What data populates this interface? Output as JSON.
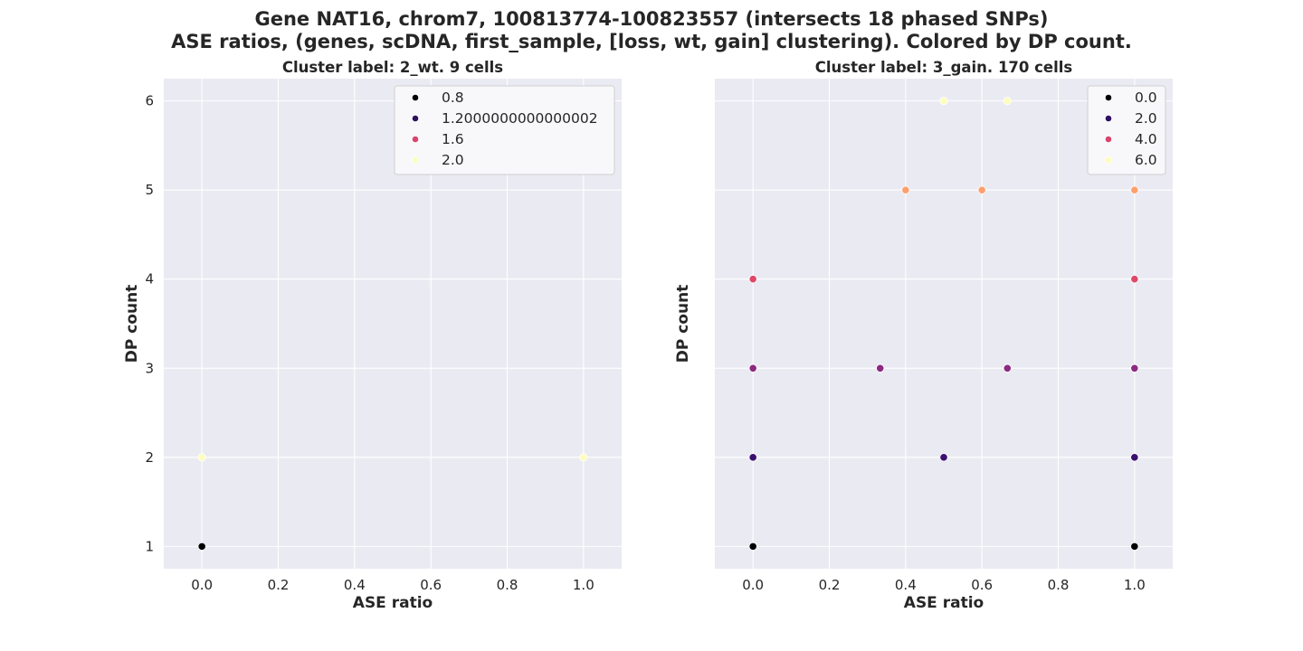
{
  "suptitle_line1": "Gene NAT16, chrom7, 100813774-100823557 (intersects 18 phased SNPs)",
  "suptitle_line2": "ASE ratios, (genes, scDNA, first_sample, [loss, wt, gain] clustering). Colored by DP count.",
  "colors": {
    "panel_bg": "#eaeaf2",
    "grid": "#ffffff",
    "legend_bg": "#f8f8fb",
    "legend_border": "#d0d0d0"
  },
  "chart_data": [
    {
      "type": "scatter",
      "title": "Cluster label: 2_wt. 9 cells",
      "xlabel": "ASE ratio",
      "ylabel": "DP count",
      "xlim": [
        -0.1,
        1.1
      ],
      "ylim": [
        0.75,
        6.25
      ],
      "xticks": [
        "0.0",
        "0.2",
        "0.4",
        "0.6",
        "0.8",
        "1.0"
      ],
      "yticks": [
        "1",
        "2",
        "3",
        "4",
        "5",
        "6"
      ],
      "show_yticklabels": true,
      "grid": true,
      "legend_position": "top-right",
      "legend": [
        {
          "label": "0.8",
          "color": "#000004"
        },
        {
          "label": "1.2000000000000002",
          "color": "#2e1060"
        },
        {
          "label": "1.6",
          "color": "#d8456c"
        },
        {
          "label": "2.0",
          "color": "#fcfdbf"
        }
      ],
      "points": [
        {
          "x": 0.0,
          "y": 1,
          "color": "#000004"
        },
        {
          "x": 0.0,
          "y": 2,
          "color": "#fcfdbf"
        },
        {
          "x": 1.0,
          "y": 2,
          "color": "#fcfdbf"
        }
      ]
    },
    {
      "type": "scatter",
      "title": "Cluster label: 3_gain. 170 cells",
      "xlabel": "ASE ratio",
      "ylabel": "DP count",
      "xlim": [
        -0.1,
        1.1
      ],
      "ylim": [
        0.75,
        6.25
      ],
      "xticks": [
        "0.0",
        "0.2",
        "0.4",
        "0.6",
        "0.8",
        "1.0"
      ],
      "yticks": [
        "1",
        "2",
        "3",
        "4",
        "5",
        "6"
      ],
      "show_yticklabels": false,
      "grid": true,
      "legend_position": "top-right",
      "legend": [
        {
          "label": "0.0",
          "color": "#000004"
        },
        {
          "label": "2.0",
          "color": "#2e1060"
        },
        {
          "label": "4.0",
          "color": "#d8456c"
        },
        {
          "label": "6.0",
          "color": "#fcfdbf"
        }
      ],
      "points": [
        {
          "x": 0.0,
          "y": 1,
          "color": "#000004"
        },
        {
          "x": 1.0,
          "y": 1,
          "color": "#000004"
        },
        {
          "x": 0.0,
          "y": 2,
          "color": "#3b0f70"
        },
        {
          "x": 0.5,
          "y": 2,
          "color": "#3b0f70"
        },
        {
          "x": 1.0,
          "y": 2,
          "color": "#3b0f70"
        },
        {
          "x": 0.0,
          "y": 3,
          "color": "#8c2981"
        },
        {
          "x": 0.3333,
          "y": 3,
          "color": "#8c2981"
        },
        {
          "x": 0.6667,
          "y": 3,
          "color": "#8c2981"
        },
        {
          "x": 1.0,
          "y": 3,
          "color": "#8c2981"
        },
        {
          "x": 0.0,
          "y": 4,
          "color": "#de4968"
        },
        {
          "x": 1.0,
          "y": 4,
          "color": "#de4968"
        },
        {
          "x": 0.4,
          "y": 5,
          "color": "#fe9f6d"
        },
        {
          "x": 0.6,
          "y": 5,
          "color": "#fe9f6d"
        },
        {
          "x": 1.0,
          "y": 5,
          "color": "#fe9f6d"
        },
        {
          "x": 0.5,
          "y": 6,
          "color": "#fcfdbf"
        },
        {
          "x": 0.6667,
          "y": 6,
          "color": "#fcfdbf"
        }
      ]
    }
  ]
}
